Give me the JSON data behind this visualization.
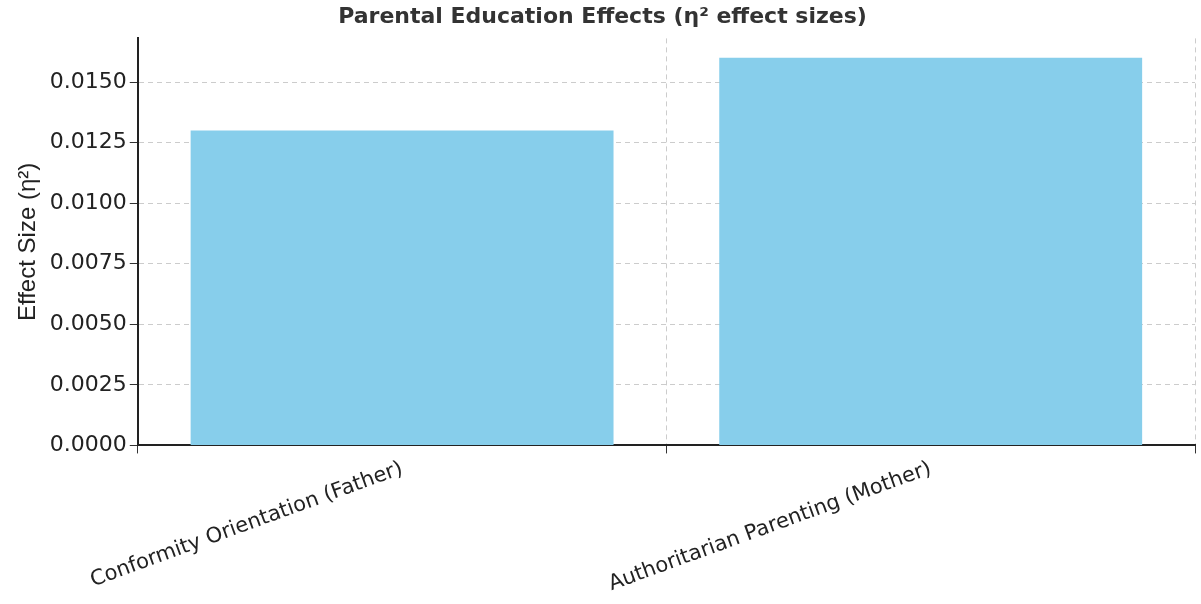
{
  "chart_data": {
    "type": "bar",
    "title": "Parental Education Effects (η² effect sizes)",
    "ylabel": "Effect Size (η²)",
    "categories": [
      "Conformity Orientation (Father)",
      "Authoritarian Parenting (Mother)"
    ],
    "values": [
      0.013,
      0.016
    ],
    "color": "#87ceeb",
    "ylim": [
      0,
      0.0168
    ],
    "yticks": [
      {
        "value": 0,
        "label": "0.0000"
      },
      {
        "value": 0.0025,
        "label": "0.0025"
      },
      {
        "value": 0.005,
        "label": "0.0050"
      },
      {
        "value": 0.0075,
        "label": "0.0075"
      },
      {
        "value": 0.01,
        "label": "0.0100"
      },
      {
        "value": 0.0125,
        "label": "0.0125"
      },
      {
        "value": 0.015,
        "label": "0.0150"
      }
    ],
    "grid": true
  }
}
